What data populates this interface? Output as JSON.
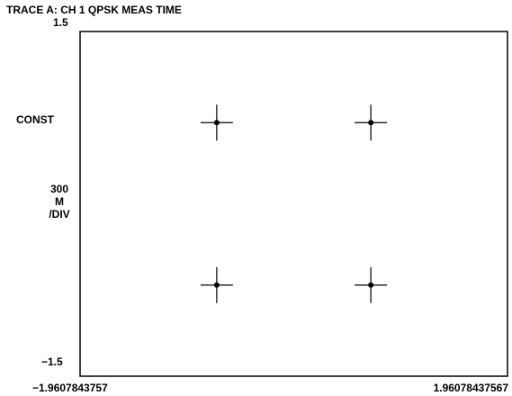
{
  "title": "TRACE A: CH 1 QPSK MEAS TIME",
  "y_max_label": "1.5",
  "y_min_label": "−1.5",
  "mode_label": "CONST",
  "scale": {
    "value": "300",
    "unit": "M",
    "per": "/DIV"
  },
  "x_min_label": "−1.9607843757",
  "x_max_label": "1.96078437567",
  "chart_data": {
    "type": "scatter",
    "title": "TRACE A: CH 1 QPSK MEAS TIME",
    "xlim": [
      -1.9607843757,
      1.96078437567
    ],
    "ylim": [
      -1.5,
      1.5
    ],
    "grid": false,
    "series": [
      {
        "points": [
          {
            "x": -0.707,
            "y": 0.707
          },
          {
            "x": 0.707,
            "y": 0.707
          },
          {
            "x": -0.707,
            "y": -0.707
          },
          {
            "x": 0.707,
            "y": -0.707
          }
        ]
      }
    ]
  },
  "colors": {
    "foreground": "#000000",
    "background": "#ffffff"
  }
}
